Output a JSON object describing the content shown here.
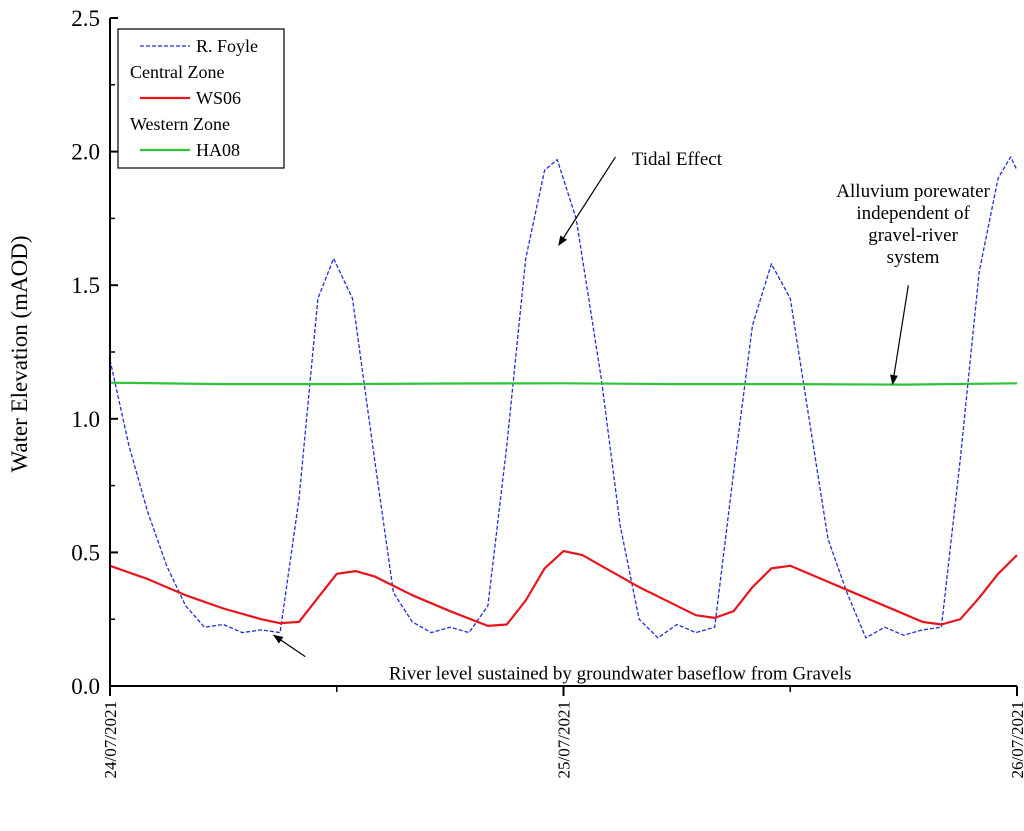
{
  "chart_data": {
    "type": "line",
    "ylabel": "Water Elevation (mAOD)",
    "xlabel": "",
    "ylim": [
      0,
      2.5
    ],
    "yticks": [
      "0.0",
      "0.5",
      "1.0",
      "1.5",
      "2.0",
      "2.5"
    ],
    "xrange": [
      "2021-07-24 00:00",
      "2021-07-26 00:00"
    ],
    "xtick_labels": [
      "24/07/2021",
      "25/07/2021",
      "26/07/2021"
    ],
    "grid": false,
    "legend_position": "top-left",
    "legend": [
      {
        "type": "series",
        "label": "R. Foyle",
        "color": "#1f2fd6",
        "style": "dashed"
      },
      {
        "type": "heading",
        "label": "Central Zone"
      },
      {
        "type": "series",
        "label": "WS06",
        "color": "#e8141c",
        "style": "solid"
      },
      {
        "type": "heading",
        "label": "Western Zone"
      },
      {
        "type": "series",
        "label": "HA08",
        "color": "#2ec43a",
        "style": "solid"
      }
    ],
    "series": [
      {
        "name": "R. Foyle",
        "color": "#1f2fd6",
        "style": "dashed",
        "points": [
          [
            "2021-07-24 00:00",
            1.22
          ],
          [
            "2021-07-24 01:00",
            0.9
          ],
          [
            "2021-07-24 02:00",
            0.65
          ],
          [
            "2021-07-24 03:00",
            0.45
          ],
          [
            "2021-07-24 04:00",
            0.3
          ],
          [
            "2021-07-24 05:00",
            0.22
          ],
          [
            "2021-07-24 06:00",
            0.23
          ],
          [
            "2021-07-24 07:00",
            0.2
          ],
          [
            "2021-07-24 08:00",
            0.21
          ],
          [
            "2021-07-24 09:00",
            0.2
          ],
          [
            "2021-07-24 10:00",
            0.7
          ],
          [
            "2021-07-24 11:00",
            1.45
          ],
          [
            "2021-07-24 11:50",
            1.6
          ],
          [
            "2021-07-24 12:50",
            1.45
          ],
          [
            "2021-07-24 14:00",
            0.85
          ],
          [
            "2021-07-24 15:00",
            0.35
          ],
          [
            "2021-07-24 16:00",
            0.24
          ],
          [
            "2021-07-24 17:00",
            0.2
          ],
          [
            "2021-07-24 18:00",
            0.22
          ],
          [
            "2021-07-24 19:00",
            0.2
          ],
          [
            "2021-07-24 20:00",
            0.3
          ],
          [
            "2021-07-24 21:00",
            0.9
          ],
          [
            "2021-07-24 22:00",
            1.6
          ],
          [
            "2021-07-24 23:00",
            1.93
          ],
          [
            "2021-07-24 23:40",
            1.97
          ],
          [
            "2021-07-25 00:40",
            1.75
          ],
          [
            "2021-07-25 02:00",
            1.15
          ],
          [
            "2021-07-25 03:00",
            0.6
          ],
          [
            "2021-07-25 04:00",
            0.25
          ],
          [
            "2021-07-25 05:00",
            0.18
          ],
          [
            "2021-07-25 06:00",
            0.23
          ],
          [
            "2021-07-25 07:00",
            0.2
          ],
          [
            "2021-07-25 08:00",
            0.22
          ],
          [
            "2021-07-25 09:00",
            0.8
          ],
          [
            "2021-07-25 10:00",
            1.35
          ],
          [
            "2021-07-25 11:00",
            1.58
          ],
          [
            "2021-07-25 12:00",
            1.45
          ],
          [
            "2021-07-25 13:00",
            1.0
          ],
          [
            "2021-07-25 14:00",
            0.55
          ],
          [
            "2021-07-25 15:00",
            0.35
          ],
          [
            "2021-07-25 16:00",
            0.18
          ],
          [
            "2021-07-25 17:00",
            0.22
          ],
          [
            "2021-07-25 18:00",
            0.19
          ],
          [
            "2021-07-25 19:00",
            0.21
          ],
          [
            "2021-07-25 20:00",
            0.22
          ],
          [
            "2021-07-25 21:00",
            0.85
          ],
          [
            "2021-07-25 22:00",
            1.55
          ],
          [
            "2021-07-25 23:00",
            1.9
          ],
          [
            "2021-07-25 23:40",
            1.98
          ],
          [
            "2021-07-26 00:00",
            1.93
          ]
        ]
      },
      {
        "name": "WS06",
        "color": "#e8141c",
        "style": "solid",
        "points": [
          [
            "2021-07-24 00:00",
            0.45
          ],
          [
            "2021-07-24 02:00",
            0.4
          ],
          [
            "2021-07-24 04:00",
            0.34
          ],
          [
            "2021-07-24 06:00",
            0.29
          ],
          [
            "2021-07-24 08:00",
            0.25
          ],
          [
            "2021-07-24 09:00",
            0.235
          ],
          [
            "2021-07-24 10:00",
            0.24
          ],
          [
            "2021-07-24 11:00",
            0.33
          ],
          [
            "2021-07-24 12:00",
            0.42
          ],
          [
            "2021-07-24 13:00",
            0.43
          ],
          [
            "2021-07-24 14:00",
            0.41
          ],
          [
            "2021-07-24 16:00",
            0.34
          ],
          [
            "2021-07-24 18:00",
            0.28
          ],
          [
            "2021-07-24 20:00",
            0.225
          ],
          [
            "2021-07-24 21:00",
            0.23
          ],
          [
            "2021-07-24 22:00",
            0.32
          ],
          [
            "2021-07-24 23:00",
            0.44
          ],
          [
            "2021-07-25 00:00",
            0.505
          ],
          [
            "2021-07-25 01:00",
            0.49
          ],
          [
            "2021-07-25 02:00",
            0.45
          ],
          [
            "2021-07-25 04:00",
            0.37
          ],
          [
            "2021-07-25 06:00",
            0.3
          ],
          [
            "2021-07-25 07:00",
            0.265
          ],
          [
            "2021-07-25 08:00",
            0.255
          ],
          [
            "2021-07-25 09:00",
            0.28
          ],
          [
            "2021-07-25 10:00",
            0.37
          ],
          [
            "2021-07-25 11:00",
            0.44
          ],
          [
            "2021-07-25 12:00",
            0.45
          ],
          [
            "2021-07-25 13:00",
            0.42
          ],
          [
            "2021-07-25 15:00",
            0.36
          ],
          [
            "2021-07-25 17:00",
            0.3
          ],
          [
            "2021-07-25 19:00",
            0.24
          ],
          [
            "2021-07-25 20:00",
            0.23
          ],
          [
            "2021-07-25 21:00",
            0.25
          ],
          [
            "2021-07-25 22:00",
            0.33
          ],
          [
            "2021-07-25 23:00",
            0.42
          ],
          [
            "2021-07-26 00:00",
            0.49
          ]
        ]
      },
      {
        "name": "HA08",
        "color": "#2ec43a",
        "style": "solid",
        "points": [
          [
            "2021-07-24 00:00",
            1.135
          ],
          [
            "2021-07-24 06:00",
            1.13
          ],
          [
            "2021-07-24 12:00",
            1.13
          ],
          [
            "2021-07-24 18:00",
            1.132
          ],
          [
            "2021-07-25 00:00",
            1.133
          ],
          [
            "2021-07-25 06:00",
            1.13
          ],
          [
            "2021-07-25 12:00",
            1.13
          ],
          [
            "2021-07-25 18:00",
            1.128
          ],
          [
            "2021-07-26 00:00",
            1.133
          ]
        ]
      }
    ],
    "annotations": [
      {
        "name": "annotation-tidal-effect",
        "lines": [
          "Tidal Effect"
        ],
        "text_at": [
          "2021-07-25 06:00",
          1.95
        ],
        "arrow_from": [
          "2021-07-25 02:45",
          1.98
        ],
        "arrow_to": [
          "2021-07-24 23:45",
          1.65
        ]
      },
      {
        "name": "annotation-alluvium",
        "lines": [
          "Alluvium porewater",
          "independent of",
          "gravel-river",
          "system"
        ],
        "text_at": [
          "2021-07-25 18:30",
          1.83
        ],
        "arrow_from": [
          "2021-07-25 18:15",
          1.5
        ],
        "arrow_to": [
          "2021-07-25 17:25",
          1.13
        ]
      },
      {
        "name": "annotation-river-level",
        "lines": [
          "River level sustained by groundwater baseflow from Gravels"
        ],
        "text_at": [
          "2021-07-25 03:00",
          0.025
        ],
        "arrow_from": [
          "2021-07-24 10:20",
          0.11
        ],
        "arrow_to": [
          "2021-07-24 08:40",
          0.19
        ]
      }
    ]
  }
}
